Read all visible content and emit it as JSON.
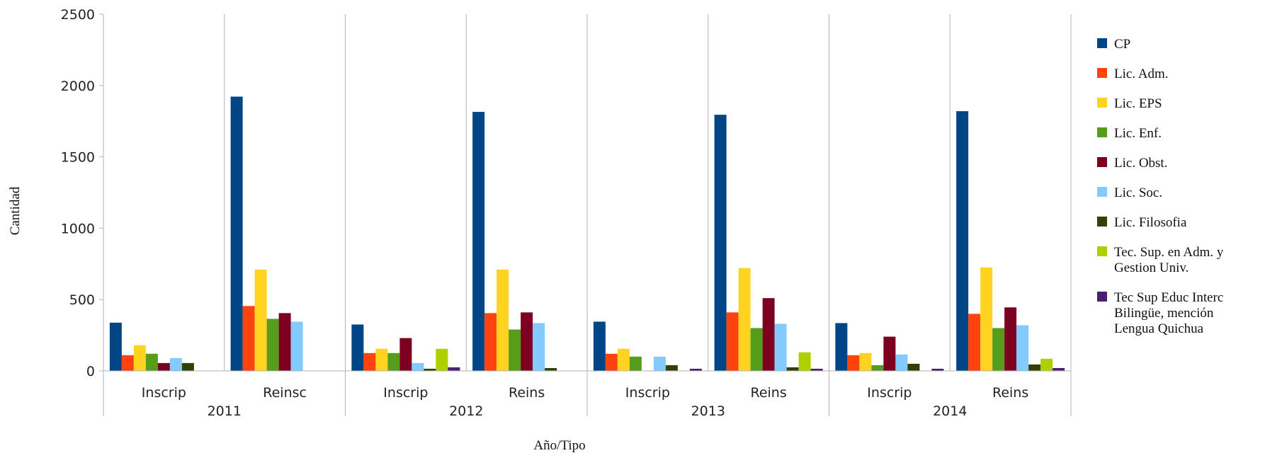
{
  "chart_data": {
    "type": "bar",
    "ylabel": "Cantidad",
    "xlabel": "Año/Tipo",
    "ylim": [
      0,
      2500
    ],
    "yticks": [
      0,
      500,
      1000,
      1500,
      2000,
      2500
    ],
    "grid": "vertical separators",
    "legend_position": "right",
    "years": [
      "2011",
      "2012",
      "2013",
      "2014"
    ],
    "categories": [
      "Inscrip",
      "Reinsc",
      "Inscrip",
      "Reins",
      "Inscrip",
      "Reins",
      "Inscrip",
      "Reins"
    ],
    "series": [
      {
        "name": "CP",
        "color": "#004586",
        "values": [
          338,
          1922,
          325,
          1815,
          345,
          1795,
          335,
          1820
        ]
      },
      {
        "name": "Lic. Adm.",
        "color": "#ff420e",
        "values": [
          110,
          455,
          125,
          405,
          120,
          410,
          110,
          400
        ]
      },
      {
        "name": "Lic. EPS",
        "color": "#ffd320",
        "values": [
          180,
          710,
          155,
          710,
          155,
          720,
          125,
          725
        ]
      },
      {
        "name": "Lic. Enf.",
        "color": "#579d1c",
        "values": [
          120,
          365,
          125,
          290,
          100,
          300,
          40,
          300
        ]
      },
      {
        "name": "Lic. Obst.",
        "color": "#7e0021",
        "values": [
          55,
          405,
          230,
          410,
          0,
          510,
          240,
          445
        ]
      },
      {
        "name": "Lic. Soc.",
        "color": "#83caff",
        "values": [
          90,
          345,
          55,
          335,
          100,
          330,
          115,
          320
        ]
      },
      {
        "name": "Lic. Filosofia",
        "color": "#314004",
        "values": [
          55,
          0,
          15,
          20,
          40,
          25,
          50,
          45
        ]
      },
      {
        "name": "Tec. Sup. en Adm. y Gestion Univ.",
        "color": "#aecf00",
        "values": [
          0,
          0,
          155,
          0,
          0,
          130,
          0,
          85
        ]
      },
      {
        "name": "Tec Sup Educ Interc Bilingüe, mención Lengua Quichua",
        "color": "#4b1f6f",
        "values": [
          0,
          0,
          25,
          0,
          15,
          15,
          15,
          20
        ]
      }
    ],
    "legend_lines": [
      [
        "CP"
      ],
      [
        "Lic. Adm."
      ],
      [
        "Lic. EPS"
      ],
      [
        "Lic. Enf."
      ],
      [
        "Lic. Obst."
      ],
      [
        "Lic. Soc."
      ],
      [
        "Lic. Filosofia"
      ],
      [
        "Tec. Sup. en Adm. y",
        "Gestion Univ."
      ],
      [
        "Tec Sup Educ Interc",
        "Bilingüe, mención",
        "Lengua Quichua"
      ]
    ]
  }
}
